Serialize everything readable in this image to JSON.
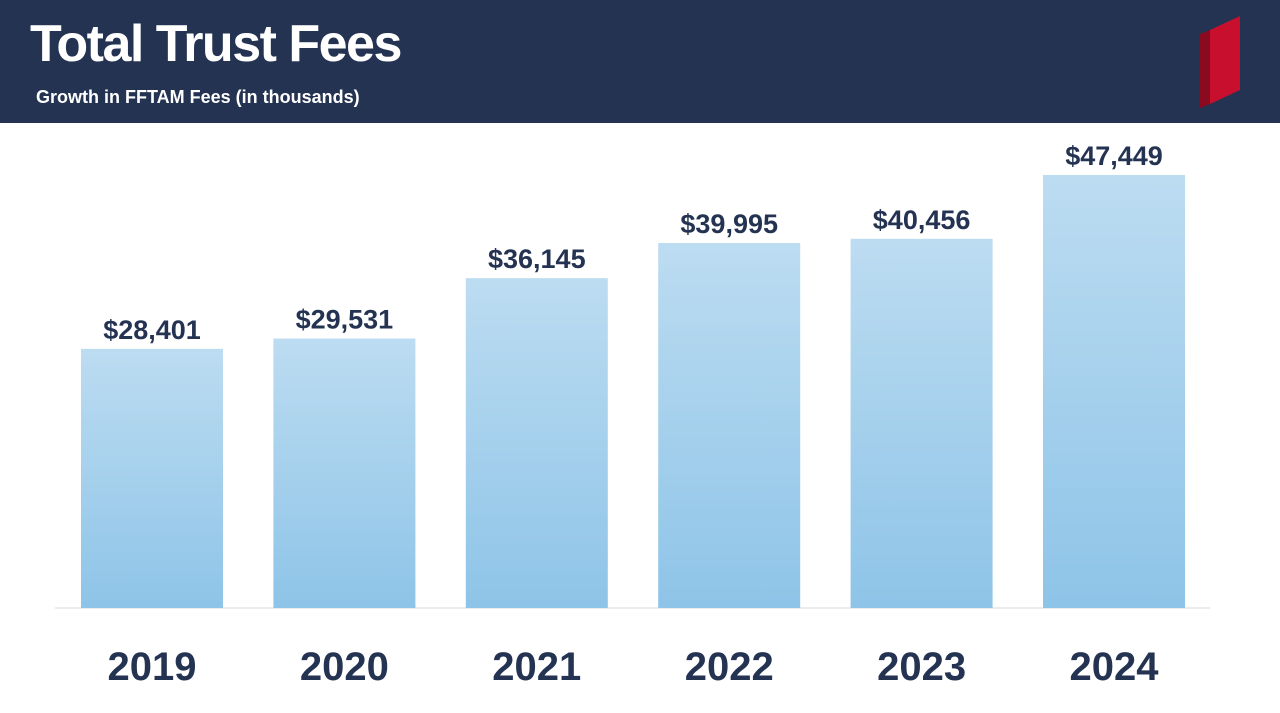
{
  "header": {
    "title": "Total Trust Fees",
    "subtitle": "Growth in FFTAM Fees (in thousands)"
  },
  "colors": {
    "header_bg": "#243352",
    "accent_red": "#c8102e",
    "bar_top": "#bcdcf1",
    "bar_bottom": "#8ec4e8",
    "text_dark": "#243352"
  },
  "chart_data": {
    "type": "bar",
    "title": "Total Trust Fees",
    "subtitle": "Growth in FFTAM Fees (in thousands)",
    "categories": [
      "2019",
      "2020",
      "2021",
      "2022",
      "2023",
      "2024"
    ],
    "values": [
      28401,
      29531,
      36145,
      39995,
      40456,
      47449
    ],
    "value_labels": [
      "$28,401",
      "$29,531",
      "$36,145",
      "$39,995",
      "$40,456",
      "$47,449"
    ],
    "xlabel": "",
    "ylabel": "",
    "ylim": [
      0,
      50000
    ],
    "grid": false,
    "legend": "none"
  }
}
